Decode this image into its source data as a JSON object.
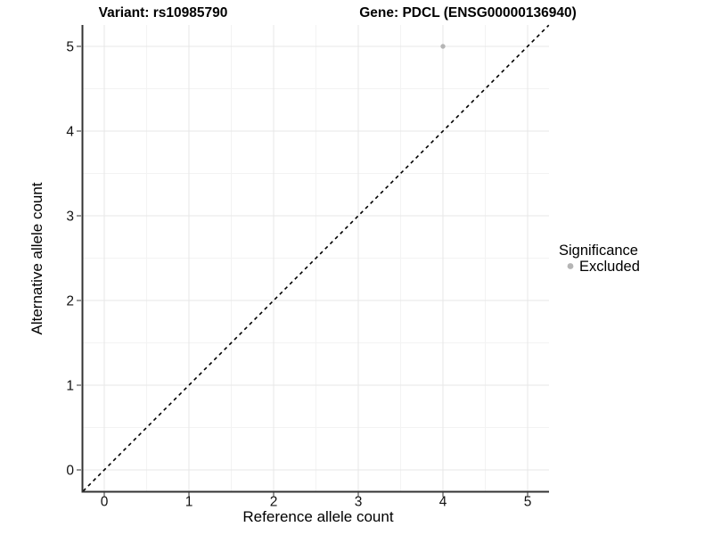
{
  "titles": {
    "left": "Variant: rs10985790",
    "right": "Gene: PDCL (ENSG00000136940)"
  },
  "chart_data": {
    "type": "scatter",
    "xlabel": "Reference allele count",
    "ylabel": "Alternative allele count",
    "xlim": [
      -0.25,
      5.25
    ],
    "ylim": [
      -0.25,
      5.25
    ],
    "x_ticks": [
      0,
      1,
      2,
      3,
      4,
      5
    ],
    "y_ticks": [
      0,
      1,
      2,
      3,
      4,
      5
    ],
    "grid": "major+minor",
    "points": [
      {
        "x": 4,
        "y": 5,
        "significance": "Excluded"
      }
    ],
    "reference_line": {
      "type": "identity",
      "style": "dashed",
      "from": [
        -0.25,
        -0.25
      ],
      "to": [
        5.25,
        5.25
      ]
    },
    "legend": {
      "title": "Significance",
      "position": "right",
      "entries": [
        {
          "label": "Excluded",
          "marker": "circle",
          "color": "#b5b5b5"
        }
      ]
    },
    "colors": {
      "point": "#b5b5b5",
      "grid_major": "#e7e7e7",
      "grid_minor": "#f3f3f3",
      "axis_line": "#333333",
      "tick_mark": "#333333",
      "dashed_line": "#000000",
      "background": "#ffffff",
      "text": "#000000"
    }
  }
}
